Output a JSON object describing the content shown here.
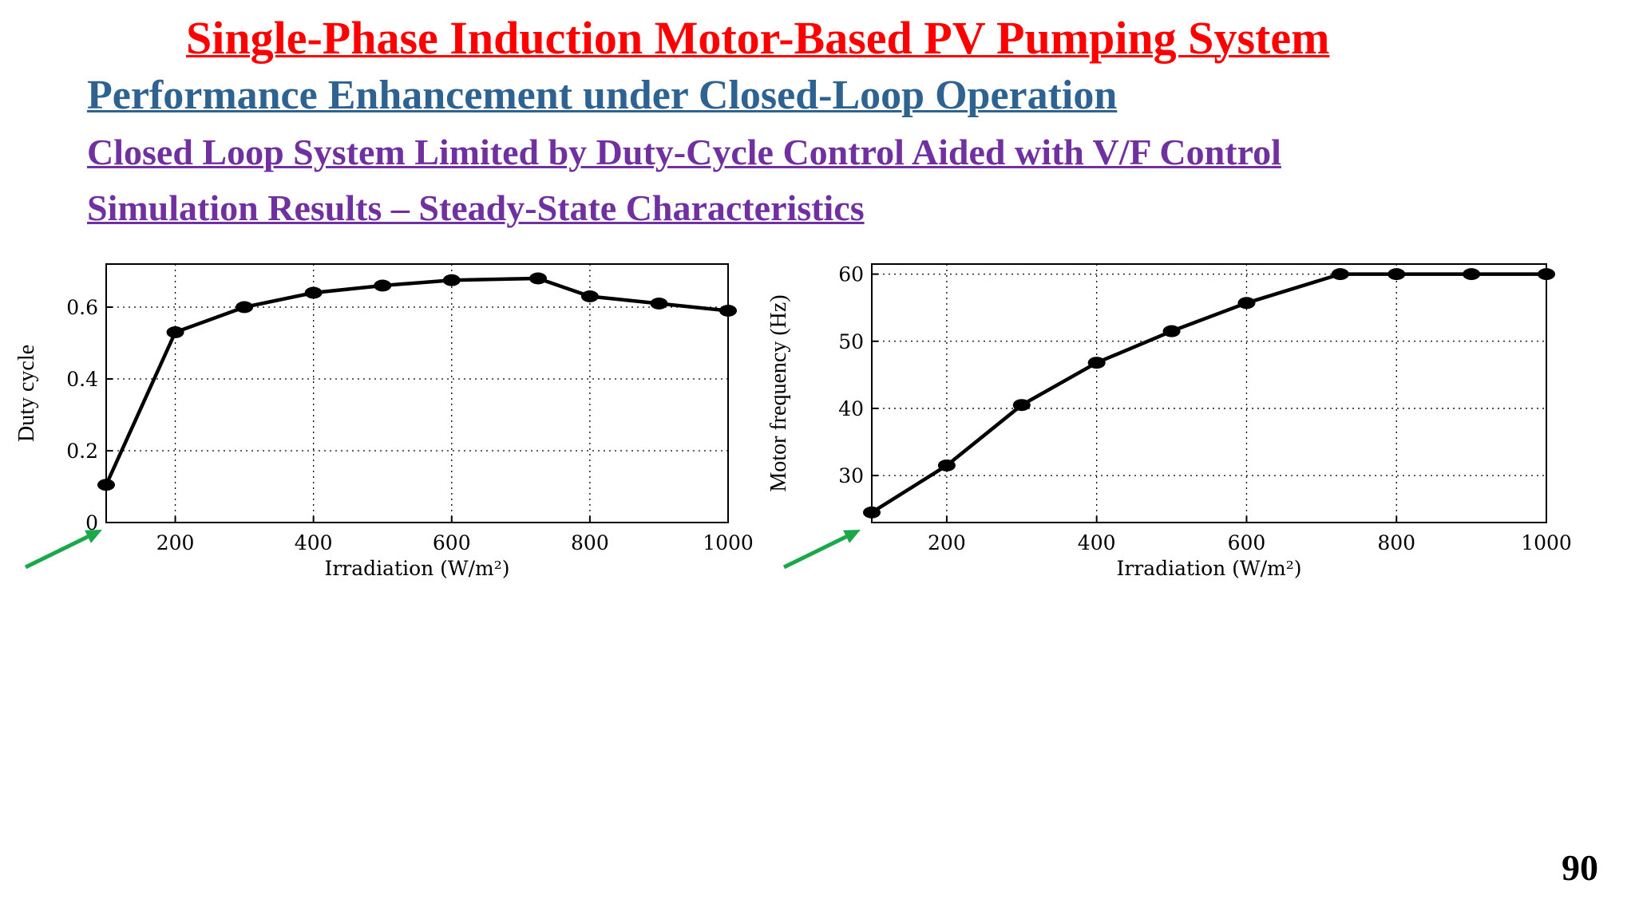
{
  "slide": {
    "title": "Single-Phase Induction Motor-Based PV Pumping System",
    "subtitle": "Performance Enhancement under Closed-Loop Operation",
    "line3": "Closed Loop System Limited by Duty-Cycle Control Aided with V/F Control",
    "line4": "Simulation Results – Steady-State Characteristics",
    "page_number": "90"
  },
  "colors": {
    "title": "#ff0000",
    "subtitle": "#2e6291",
    "section": "#7030a0",
    "arrow": "#1aa84a",
    "line": "#000000"
  },
  "chart_data": [
    {
      "type": "line",
      "xlabel": "Irradiation (W/m²)",
      "ylabel": "Duty cycle",
      "x": [
        100,
        200,
        300,
        400,
        500,
        600,
        725,
        800,
        900,
        1000
      ],
      "series": [
        {
          "values": [
            0.105,
            0.53,
            0.6,
            0.64,
            0.66,
            0.675,
            0.68,
            0.63,
            0.61,
            0.59
          ]
        }
      ],
      "xlim": [
        100,
        1000
      ],
      "ylim": [
        0,
        0.72
      ],
      "xticks": [
        200,
        400,
        600,
        800,
        1000
      ],
      "yticks": [
        0,
        0.2,
        0.4,
        0.6
      ],
      "xtick_labels": [
        "200",
        "400",
        "600",
        "800",
        "1000"
      ],
      "ytick_labels": [
        "0",
        "0.2",
        "0.4",
        "0.6"
      ],
      "grid": true,
      "annotation": "green arrow pointing to the 100 W/m² point"
    },
    {
      "type": "line",
      "xlabel": "Irradiation (W/m²)",
      "ylabel": "Motor frequency (Hz)",
      "x": [
        100,
        200,
        300,
        400,
        500,
        600,
        725,
        800,
        900,
        1000
      ],
      "series": [
        {
          "values": [
            24.5,
            31.5,
            40.5,
            46.8,
            51.5,
            55.7,
            60,
            60,
            60,
            60
          ]
        }
      ],
      "xlim": [
        100,
        1000
      ],
      "ylim": [
        23,
        61.5
      ],
      "xticks": [
        200,
        400,
        600,
        800,
        1000
      ],
      "yticks": [
        30,
        40,
        50,
        60
      ],
      "xtick_labels": [
        "200",
        "400",
        "600",
        "800",
        "1000"
      ],
      "ytick_labels": [
        "30",
        "40",
        "50",
        "60"
      ],
      "grid": true,
      "annotation": "green arrow pointing to the 100 W/m² point"
    }
  ]
}
